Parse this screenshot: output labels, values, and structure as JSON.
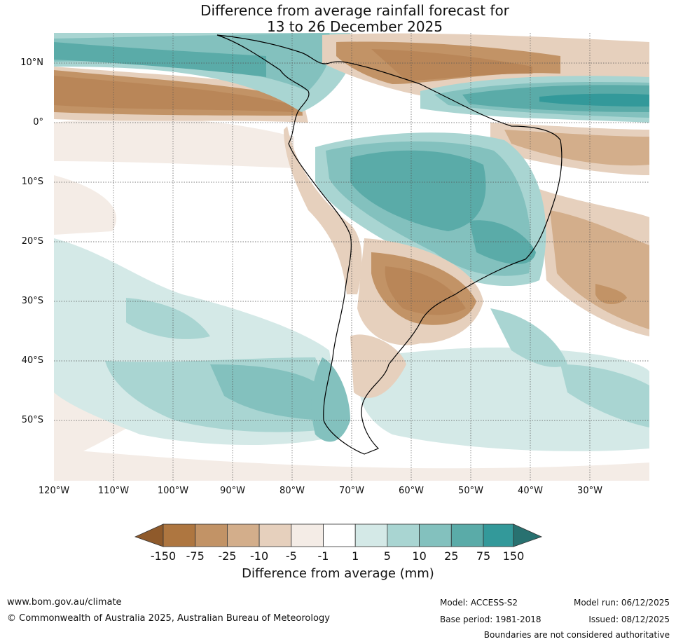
{
  "title": {
    "line1": "Difference from average rainfall forecast for",
    "line2": "13 to 26 December 2025"
  },
  "map": {
    "lat_labels": [
      "10°N",
      "0°",
      "10°S",
      "20°S",
      "30°S",
      "40°S",
      "50°S"
    ],
    "lon_labels": [
      "120°W",
      "110°W",
      "100°W",
      "90°W",
      "80°W",
      "70°W",
      "60°W",
      "50°W",
      "40°W",
      "30°W"
    ]
  },
  "legend": {
    "title": "Difference from average (mm)",
    "ticks": [
      "-150",
      "-75",
      "-25",
      "-10",
      "-5",
      "-1",
      "1",
      "5",
      "10",
      "25",
      "75",
      "150"
    ],
    "colors": [
      "#8f5a2b",
      "#ae7640",
      "#c29366",
      "#d3ae8b",
      "#e6d0bd",
      "#f4ece6",
      "#ffffff",
      "#d4e9e7",
      "#a9d5d2",
      "#83c1be",
      "#5aaba8",
      "#33999a",
      "#287170"
    ]
  },
  "footer": {
    "website": "www.bom.gov.au/climate",
    "copyright": "© Commonwealth of Australia 2025, Australian Bureau of Meteorology",
    "model": "Model: ACCESS-S2",
    "base_period": "Base period: 1981-2018",
    "model_run": "Model run: 06/12/2025",
    "issued": "Issued: 08/12/2025",
    "disclaimer": "Boundaries are not considered authoritative"
  }
}
